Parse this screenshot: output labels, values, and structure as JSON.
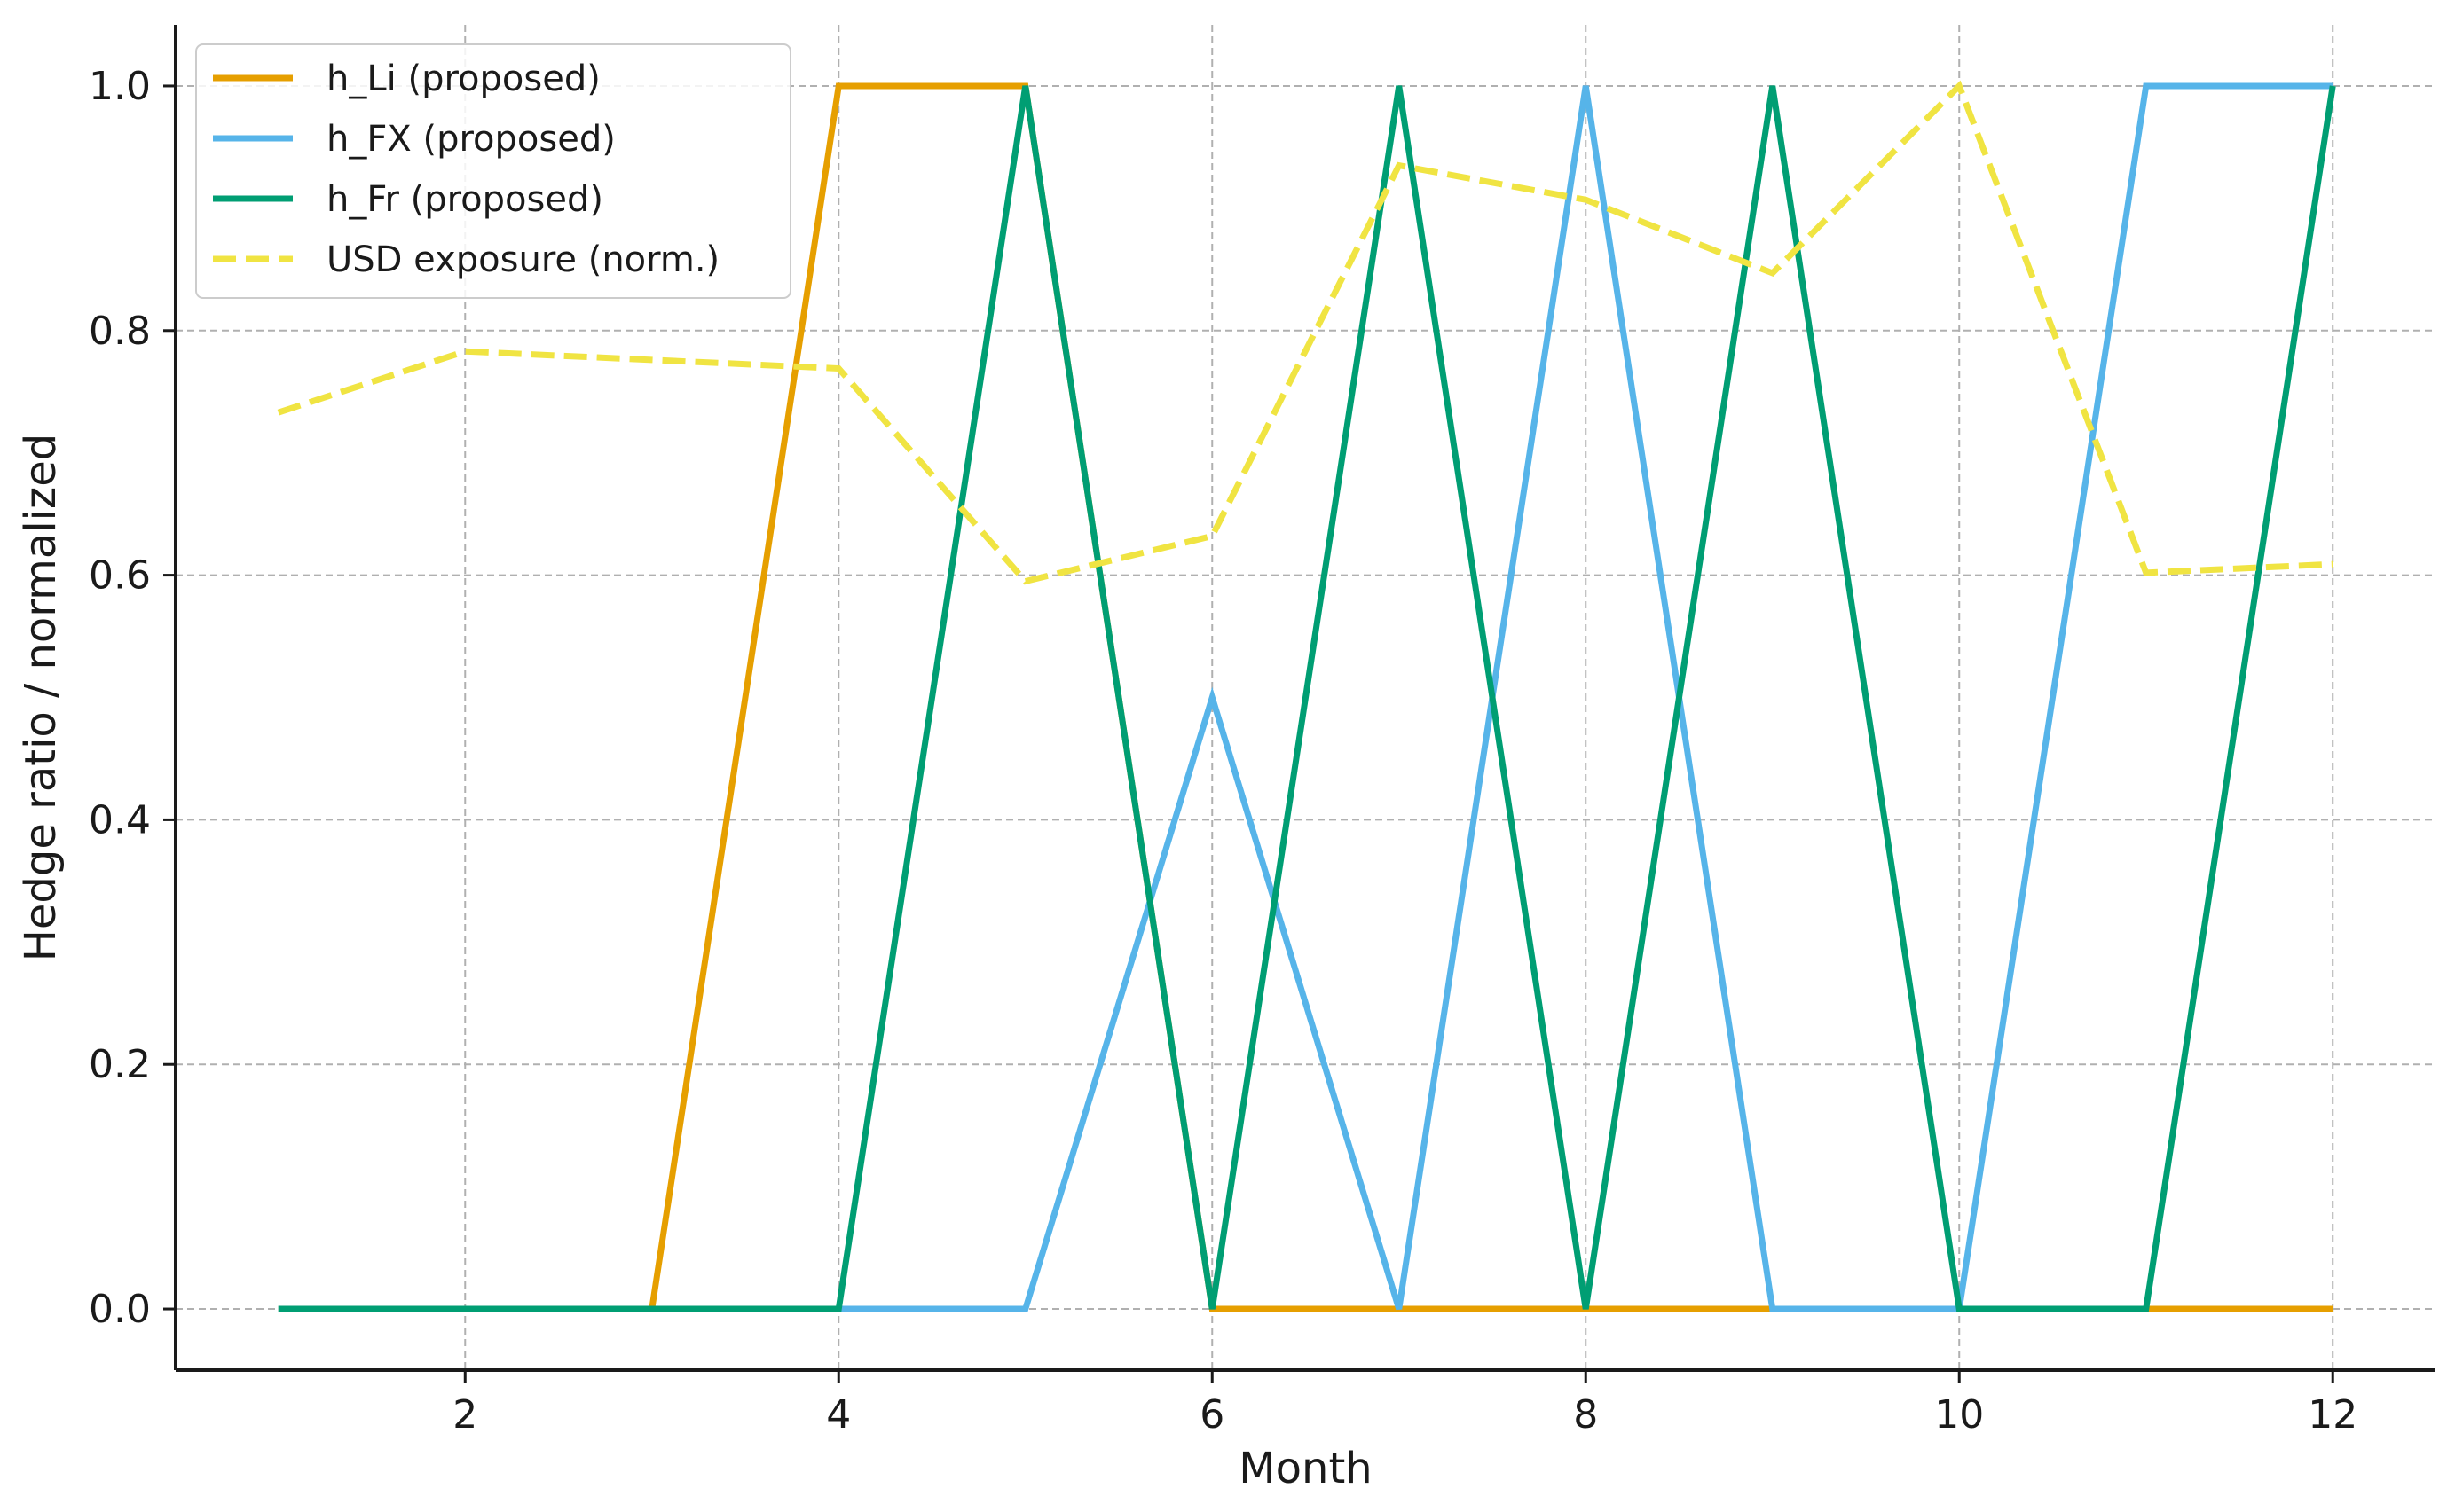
{
  "chart_data": {
    "type": "line",
    "title": "",
    "xlabel": "Month",
    "ylabel": "Hedge ratio / normalized",
    "xlim": [
      0.45,
      12.55
    ],
    "ylim": [
      -0.05,
      1.05
    ],
    "xticks": [
      2,
      4,
      6,
      8,
      10,
      12
    ],
    "yticks": [
      0.0,
      0.2,
      0.4,
      0.6,
      0.8,
      1.0
    ],
    "ytick_labels": [
      "0.0",
      "0.2",
      "0.4",
      "0.6",
      "0.8",
      "1.0"
    ],
    "grid": true,
    "legend_position": "top-left",
    "x": [
      1,
      2,
      3,
      4,
      5,
      6,
      7,
      8,
      9,
      10,
      11,
      12
    ],
    "series": [
      {
        "name": "h_Li (proposed)",
        "color": "#E69F00",
        "style": "solid",
        "values": [
          0,
          0,
          0,
          1,
          1,
          0,
          0,
          0,
          0,
          0,
          0,
          0
        ]
      },
      {
        "name": "h_FX (proposed)",
        "color": "#56B4E9",
        "style": "solid",
        "values": [
          0,
          0,
          0,
          0,
          0,
          0.5,
          0,
          1,
          0,
          0,
          1,
          1
        ]
      },
      {
        "name": "h_Fr (proposed)",
        "color": "#009E73",
        "style": "solid",
        "values": [
          0,
          0,
          0,
          0,
          1,
          0,
          1,
          0,
          1,
          0,
          0,
          1
        ]
      },
      {
        "name": "USD exposure (norm.)",
        "color": "#F0E442",
        "style": "dashed",
        "values": [
          0.733,
          0.783,
          0.776,
          0.769,
          0.595,
          0.632,
          0.935,
          0.907,
          0.847,
          1.0,
          0.602,
          0.609
        ]
      }
    ]
  }
}
